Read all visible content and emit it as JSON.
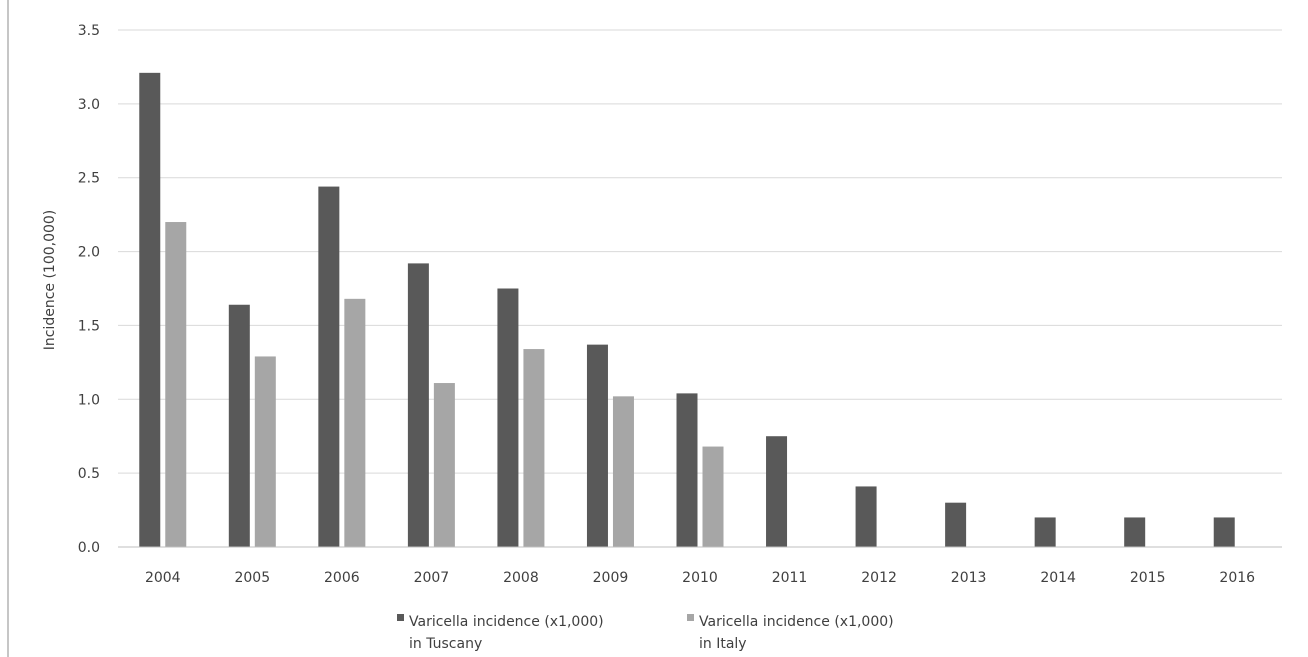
{
  "chart_data": {
    "type": "bar",
    "categories": [
      "2004",
      "2005",
      "2006",
      "2007",
      "2008",
      "2009",
      "2010",
      "2011",
      "2012",
      "2013",
      "2014",
      "2015",
      "2016"
    ],
    "series": [
      {
        "name": "Varicella incidence (x1,000) in Tuscany",
        "legend_lines": [
          "Varicella incidence (x1,000)",
          "in Tuscany"
        ],
        "color": "#595959",
        "values": [
          3.21,
          1.64,
          2.44,
          1.92,
          1.75,
          1.37,
          1.04,
          0.75,
          0.41,
          0.3,
          0.2,
          0.2,
          0.2
        ]
      },
      {
        "name": "Varicella incidence (x1,000) in Italy",
        "legend_lines": [
          "Varicella incidence (x1,000)",
          "in Italy"
        ],
        "color": "#a6a6a6",
        "values": [
          2.2,
          1.29,
          1.68,
          1.11,
          1.34,
          1.02,
          0.68,
          null,
          null,
          null,
          null,
          null,
          null
        ]
      }
    ],
    "ylabel": "Incidence (100,000)",
    "ylim": [
      0,
      3.5
    ],
    "yticks": [
      "0.0",
      "0.5",
      "1.0",
      "1.5",
      "2.0",
      "2.5",
      "3.0",
      "3.5"
    ],
    "grid": true,
    "gridColor": "#d9d9d9",
    "legend": "bottom-center"
  }
}
